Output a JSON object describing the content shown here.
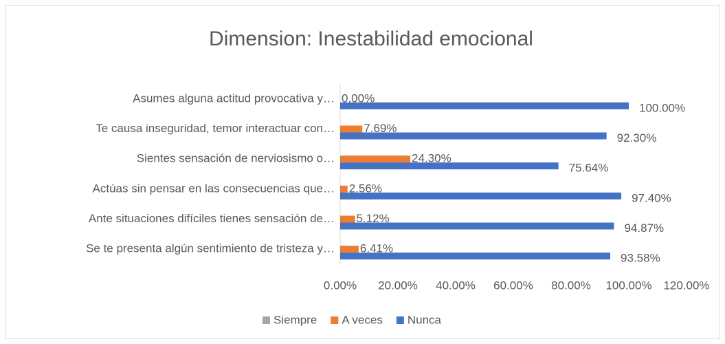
{
  "chart_data": {
    "type": "bar",
    "orientation": "horizontal",
    "title": "Dimension: Inestabilidad emocional",
    "categories": [
      "Asumes alguna actitud provocativa y…",
      "Te causa inseguridad, temor interactuar con…",
      "Sientes sensación de nerviosismo o…",
      "Actúas sin pensar en las consecuencias que…",
      "Ante situaciones difíciles tienes sensación de…",
      "Se te presenta algún sentimiento de tristeza y…"
    ],
    "series": [
      {
        "name": "Siempre",
        "color": "#a5a5a5",
        "values": [
          0,
          0,
          0,
          0,
          0,
          0
        ]
      },
      {
        "name": "A veces",
        "color": "#ed7d31",
        "values": [
          0,
          7.69,
          24.3,
          2.56,
          5.12,
          6.41
        ],
        "value_labels": [
          "0.00%",
          "7.69%",
          "24.30%",
          "2.56%",
          "5.12%",
          "6.41%"
        ]
      },
      {
        "name": "Nunca",
        "color": "#4472c4",
        "values": [
          100,
          92.3,
          75.64,
          97.4,
          94.87,
          93.58
        ],
        "value_labels": [
          "100.00%",
          "92.30%",
          "75.64%",
          "97.40%",
          "94.87%",
          "93.58%"
        ]
      }
    ],
    "xlim": [
      0,
      120
    ],
    "xticks": [
      {
        "value": 0,
        "label": "0.00%"
      },
      {
        "value": 20,
        "label": "20.00%"
      },
      {
        "value": 40,
        "label": "40.00%"
      },
      {
        "value": 60,
        "label": "60.00%"
      },
      {
        "value": 80,
        "label": "80.00%"
      },
      {
        "value": 100,
        "label": "100.00%"
      },
      {
        "value": 120,
        "label": "120.00%"
      }
    ],
    "legend": "bottom"
  }
}
